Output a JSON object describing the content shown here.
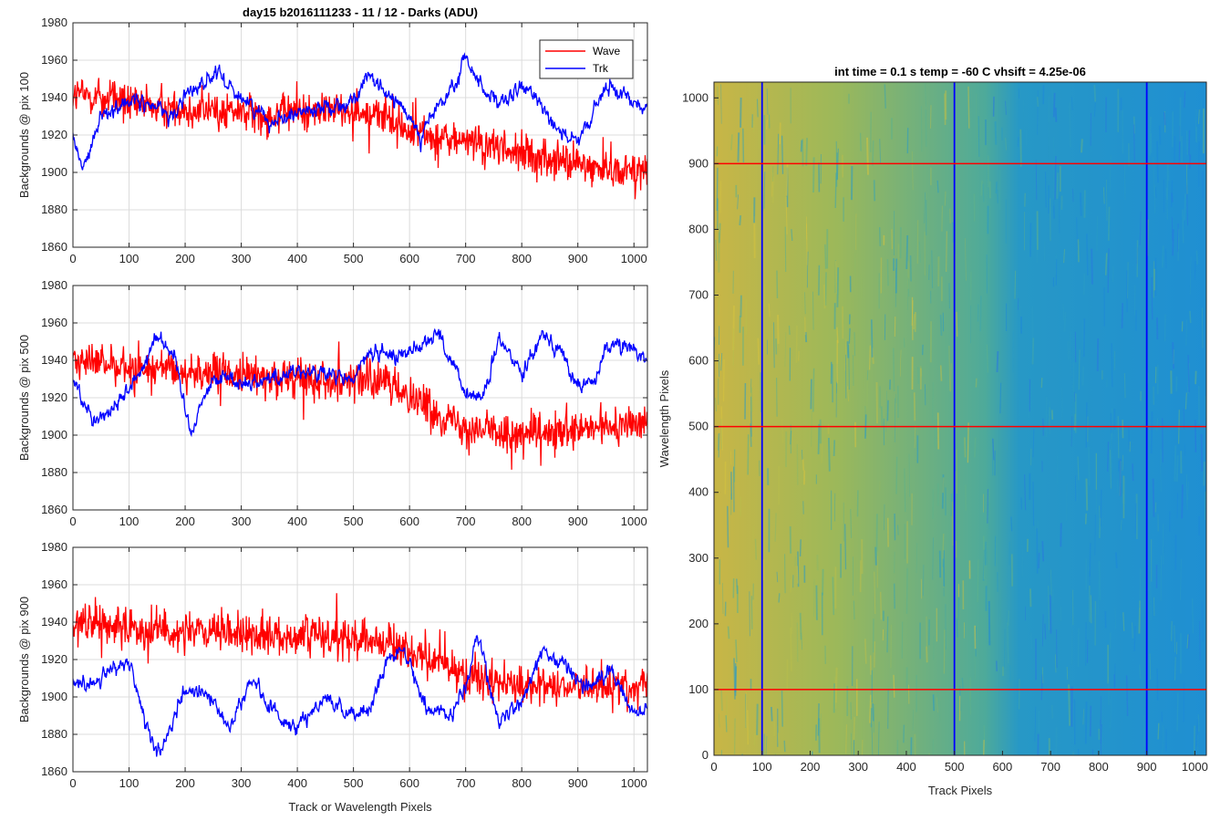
{
  "figure": {
    "main_title": "day15 b2016111233 - 11 / 12 - Darks (ADU)",
    "image_title": "int time = 0.1 s   temp = -60 C   vhsift = 4.25e-06"
  },
  "legend": {
    "wave_label": "Wave",
    "trk_label": "Trk",
    "wave_color": "#ff0000",
    "trk_color": "#0000ff"
  },
  "chart_data": [
    {
      "type": "line",
      "ylabel": "Backgrounds @ pix 100",
      "xlabel": "",
      "xlim": [
        0,
        1024
      ],
      "ylim": [
        1860,
        1980
      ],
      "xticks": [
        0,
        100,
        200,
        300,
        400,
        500,
        600,
        700,
        800,
        900,
        1000
      ],
      "yticks": [
        1860,
        1880,
        1900,
        1920,
        1940,
        1960,
        1980
      ],
      "grid": true,
      "legend": "top-right",
      "series": [
        {
          "name": "Wave",
          "color": "#ff0000",
          "x": [
            0,
            50,
            100,
            150,
            200,
            250,
            300,
            350,
            400,
            450,
            500,
            550,
            600,
            650,
            700,
            750,
            800,
            850,
            900,
            950,
            1000,
            1024
          ],
          "y": [
            1942,
            1940,
            1937,
            1935,
            1934,
            1933,
            1932,
            1931,
            1932,
            1933,
            1934,
            1930,
            1922,
            1918,
            1916,
            1913,
            1910,
            1907,
            1904,
            1902,
            1902,
            1902
          ]
        },
        {
          "name": "Trk",
          "color": "#0000ff",
          "x": [
            0,
            15,
            30,
            50,
            80,
            100,
            150,
            180,
            200,
            230,
            260,
            300,
            350,
            400,
            450,
            500,
            520,
            550,
            600,
            620,
            650,
            680,
            700,
            720,
            760,
            800,
            830,
            860,
            900,
            950,
            1000,
            1024
          ],
          "y": [
            1920,
            1902,
            1910,
            1930,
            1936,
            1938,
            1935,
            1930,
            1942,
            1948,
            1952,
            1940,
            1928,
            1932,
            1935,
            1938,
            1950,
            1945,
            1930,
            1920,
            1935,
            1945,
            1962,
            1950,
            1935,
            1945,
            1940,
            1925,
            1915,
            1945,
            1940,
            1935
          ]
        }
      ]
    },
    {
      "type": "line",
      "ylabel": "Backgrounds @ pix 500",
      "xlabel": "",
      "xlim": [
        0,
        1024
      ],
      "ylim": [
        1860,
        1980
      ],
      "xticks": [
        0,
        100,
        200,
        300,
        400,
        500,
        600,
        700,
        800,
        900,
        1000
      ],
      "yticks": [
        1860,
        1880,
        1900,
        1920,
        1940,
        1960,
        1980
      ],
      "grid": true,
      "series": [
        {
          "name": "Wave",
          "color": "#ff0000",
          "x": [
            0,
            50,
            100,
            150,
            200,
            250,
            300,
            350,
            400,
            450,
            500,
            550,
            600,
            650,
            700,
            750,
            800,
            850,
            900,
            950,
            1000,
            1024
          ],
          "y": [
            1940,
            1938,
            1936,
            1935,
            1934,
            1933,
            1932,
            1931,
            1930,
            1930,
            1930,
            1928,
            1922,
            1912,
            1905,
            1902,
            1900,
            1900,
            1902,
            1904,
            1906,
            1906
          ]
        },
        {
          "name": "Trk",
          "color": "#0000ff",
          "x": [
            0,
            20,
            40,
            70,
            100,
            130,
            150,
            180,
            210,
            240,
            270,
            300,
            350,
            400,
            450,
            500,
            530,
            560,
            600,
            650,
            680,
            700,
            730,
            760,
            800,
            840,
            870,
            900,
            930,
            960,
            1000,
            1024
          ],
          "y": [
            1930,
            1918,
            1908,
            1914,
            1925,
            1940,
            1955,
            1942,
            1902,
            1926,
            1932,
            1928,
            1930,
            1935,
            1932,
            1930,
            1945,
            1942,
            1945,
            1955,
            1935,
            1922,
            1920,
            1950,
            1935,
            1955,
            1945,
            1925,
            1930,
            1950,
            1945,
            1940
          ]
        }
      ]
    },
    {
      "type": "line",
      "ylabel": "Backgrounds @ pix 900",
      "xlabel": "Track or Wavelength Pixels",
      "xlim": [
        0,
        1024
      ],
      "ylim": [
        1860,
        1980
      ],
      "xticks": [
        0,
        100,
        200,
        300,
        400,
        500,
        600,
        700,
        800,
        900,
        1000
      ],
      "yticks": [
        1860,
        1880,
        1900,
        1920,
        1940,
        1960,
        1980
      ],
      "grid": true,
      "series": [
        {
          "name": "Wave",
          "color": "#ff0000",
          "x": [
            0,
            50,
            100,
            150,
            200,
            250,
            300,
            350,
            400,
            450,
            500,
            550,
            600,
            650,
            700,
            750,
            800,
            850,
            900,
            950,
            1000,
            1024
          ],
          "y": [
            1940,
            1938,
            1937,
            1936,
            1935,
            1934,
            1934,
            1933,
            1933,
            1933,
            1932,
            1930,
            1925,
            1918,
            1912,
            1908,
            1906,
            1905,
            1905,
            1906,
            1907,
            1907
          ]
        },
        {
          "name": "Trk",
          "color": "#0000ff",
          "x": [
            0,
            30,
            60,
            100,
            130,
            150,
            170,
            200,
            240,
            280,
            320,
            360,
            400,
            420,
            450,
            500,
            530,
            560,
            590,
            630,
            670,
            700,
            720,
            760,
            800,
            840,
            880,
            920,
            960,
            1000,
            1024
          ],
          "y": [
            1910,
            1905,
            1915,
            1918,
            1885,
            1870,
            1880,
            1905,
            1900,
            1885,
            1910,
            1890,
            1885,
            1890,
            1900,
            1890,
            1895,
            1920,
            1925,
            1895,
            1890,
            1905,
            1935,
            1885,
            1900,
            1925,
            1915,
            1905,
            1915,
            1890,
            1895
          ]
        }
      ]
    },
    {
      "type": "heatmap",
      "title": "int time = 0.1 s   temp = -60 C   vhsift = 4.25e-06",
      "xlabel": "Track Pixels",
      "ylabel": "Wavelength Pixels",
      "xlim": [
        0,
        1024
      ],
      "ylim": [
        0,
        1024
      ],
      "xticks": [
        0,
        100,
        200,
        300,
        400,
        500,
        600,
        700,
        800,
        900,
        1000
      ],
      "yticks": [
        0,
        100,
        200,
        300,
        400,
        500,
        600,
        700,
        800,
        900,
        1000
      ],
      "colormap": "parula",
      "vertical_lines": {
        "x": [
          100,
          500,
          900
        ],
        "color": "#0000ff"
      },
      "horizontal_lines": {
        "y": [
          100,
          500,
          900
        ],
        "color": "#ff0000"
      }
    }
  ]
}
